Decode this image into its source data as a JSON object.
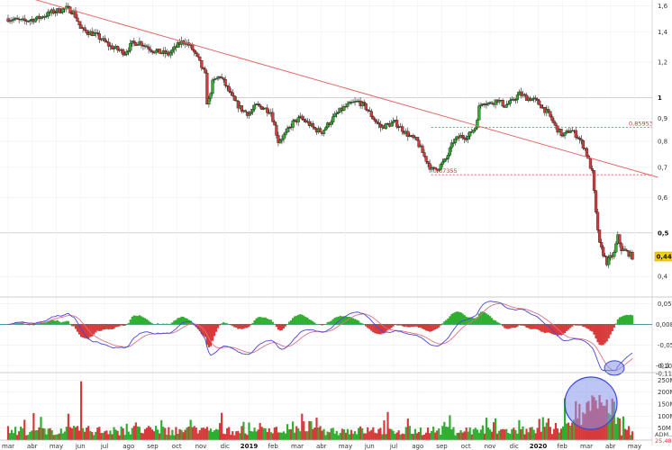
{
  "chart_data": [
    {
      "type": "candlestick",
      "panel": "price",
      "x_months": [
        "mar",
        "abr",
        "may",
        "jun",
        "jul",
        "ago",
        "sep",
        "oct",
        "nov",
        "dic",
        "2019",
        "feb",
        "mar",
        "abr",
        "may",
        "jun",
        "jul",
        "ago",
        "sep",
        "oct",
        "nov",
        "dic",
        "2020",
        "feb",
        "mar",
        "abr",
        "may"
      ],
      "y_ticks": [
        "0,4",
        "0,5",
        "0,6",
        "0,7",
        "0,8",
        "0,9",
        "1",
        "1,2",
        "1,4",
        "1,6"
      ],
      "y_scale": "log",
      "ylim": [
        0.36,
        1.65
      ],
      "price_path": [
        [
          0,
          1.5
        ],
        [
          2,
          1.48
        ],
        [
          4,
          1.5
        ],
        [
          6,
          1.55
        ],
        [
          8,
          1.58
        ],
        [
          9,
          1.55
        ],
        [
          10,
          1.42
        ],
        [
          12,
          1.38
        ],
        [
          14,
          1.3
        ],
        [
          16,
          1.26
        ],
        [
          17,
          1.32
        ],
        [
          18,
          1.33
        ],
        [
          20,
          1.27
        ],
        [
          22,
          1.25
        ],
        [
          23.5,
          1.32
        ],
        [
          24,
          1.34
        ],
        [
          25,
          1.3
        ],
        [
          26,
          1.22
        ],
        [
          27,
          1.12
        ],
        [
          27.3,
          0.95
        ],
        [
          28,
          1.08
        ],
        [
          29,
          1.12
        ],
        [
          30,
          1.05
        ],
        [
          31,
          0.98
        ],
        [
          32,
          0.94
        ],
        [
          33,
          0.92
        ],
        [
          34,
          0.96
        ],
        [
          35,
          0.95
        ],
        [
          36,
          0.93
        ],
        [
          37,
          0.8
        ],
        [
          38,
          0.83
        ],
        [
          39,
          0.88
        ],
        [
          40,
          0.9
        ],
        [
          41,
          0.88
        ],
        [
          42,
          0.85
        ],
        [
          43,
          0.84
        ],
        [
          44,
          0.88
        ],
        [
          45,
          0.92
        ],
        [
          46,
          0.95
        ],
        [
          47,
          0.97
        ],
        [
          48,
          0.98
        ],
        [
          49,
          0.95
        ],
        [
          50,
          0.9
        ],
        [
          51,
          0.86
        ],
        [
          52,
          0.87
        ],
        [
          53,
          0.88
        ],
        [
          54,
          0.85
        ],
        [
          55,
          0.82
        ],
        [
          56,
          0.8
        ],
        [
          57,
          0.74
        ],
        [
          58,
          0.69
        ],
        [
          59,
          0.7
        ],
        [
          60,
          0.73
        ],
        [
          61,
          0.8
        ],
        [
          62,
          0.82
        ],
        [
          63,
          0.82
        ],
        [
          64,
          0.86
        ],
        [
          64.5,
          0.95
        ],
        [
          65,
          0.98
        ],
        [
          66,
          0.97
        ],
        [
          67,
          0.99
        ],
        [
          68,
          0.96
        ],
        [
          69,
          0.98
        ],
        [
          70,
          1.02
        ],
        [
          71,
          1.0
        ],
        [
          72,
          0.99
        ],
        [
          73,
          0.96
        ],
        [
          74,
          0.92
        ],
        [
          75,
          0.86
        ],
        [
          76,
          0.82
        ],
        [
          77,
          0.85
        ],
        [
          78,
          0.82
        ],
        [
          79,
          0.77
        ],
        [
          80,
          0.68
        ],
        [
          80.5,
          0.55
        ],
        [
          81,
          0.47
        ],
        [
          82,
          0.43
        ],
        [
          83,
          0.45
        ],
        [
          83.5,
          0.49
        ],
        [
          84,
          0.46
        ],
        [
          85,
          0.45
        ],
        [
          85.5,
          0.443
        ]
      ],
      "last_price": "0,443",
      "trendline": {
        "from": [
          0,
          1.72
        ],
        "to": [
          89,
          0.665
        ]
      },
      "support_levels": [
        {
          "label": "0,85953",
          "value": 0.85953,
          "start_month": 56.3
        },
        {
          "label": "0,67355",
          "value": 0.67355,
          "start_month": 56.3
        }
      ]
    },
    {
      "type": "indicator",
      "panel": "macd",
      "y_ticks": [
        "0,05",
        "-0,05",
        "-0,1"
      ],
      "ylim": [
        -0.115,
        0.06
      ],
      "histogram_last": "0,008",
      "macd_last": "-0,109",
      "signal_last": "-0,116"
    },
    {
      "type": "bar",
      "panel": "volume",
      "y_ticks": [
        "250M",
        "200M",
        "150M",
        "100M",
        "50M"
      ],
      "ylim": [
        0,
        270
      ],
      "last_label": "ADM…",
      "last_value": "25,48"
    }
  ],
  "colors": {
    "up": "#2fae2f",
    "down": "#d63a3a",
    "trendline": "#e46a6a",
    "macd_line": "#4a46d6",
    "signal_line": "#e0708a",
    "highlight_fill": "rgba(135,150,235,0.55)",
    "highlight_stroke": "#3c44d8",
    "badge": "#f2d200"
  }
}
